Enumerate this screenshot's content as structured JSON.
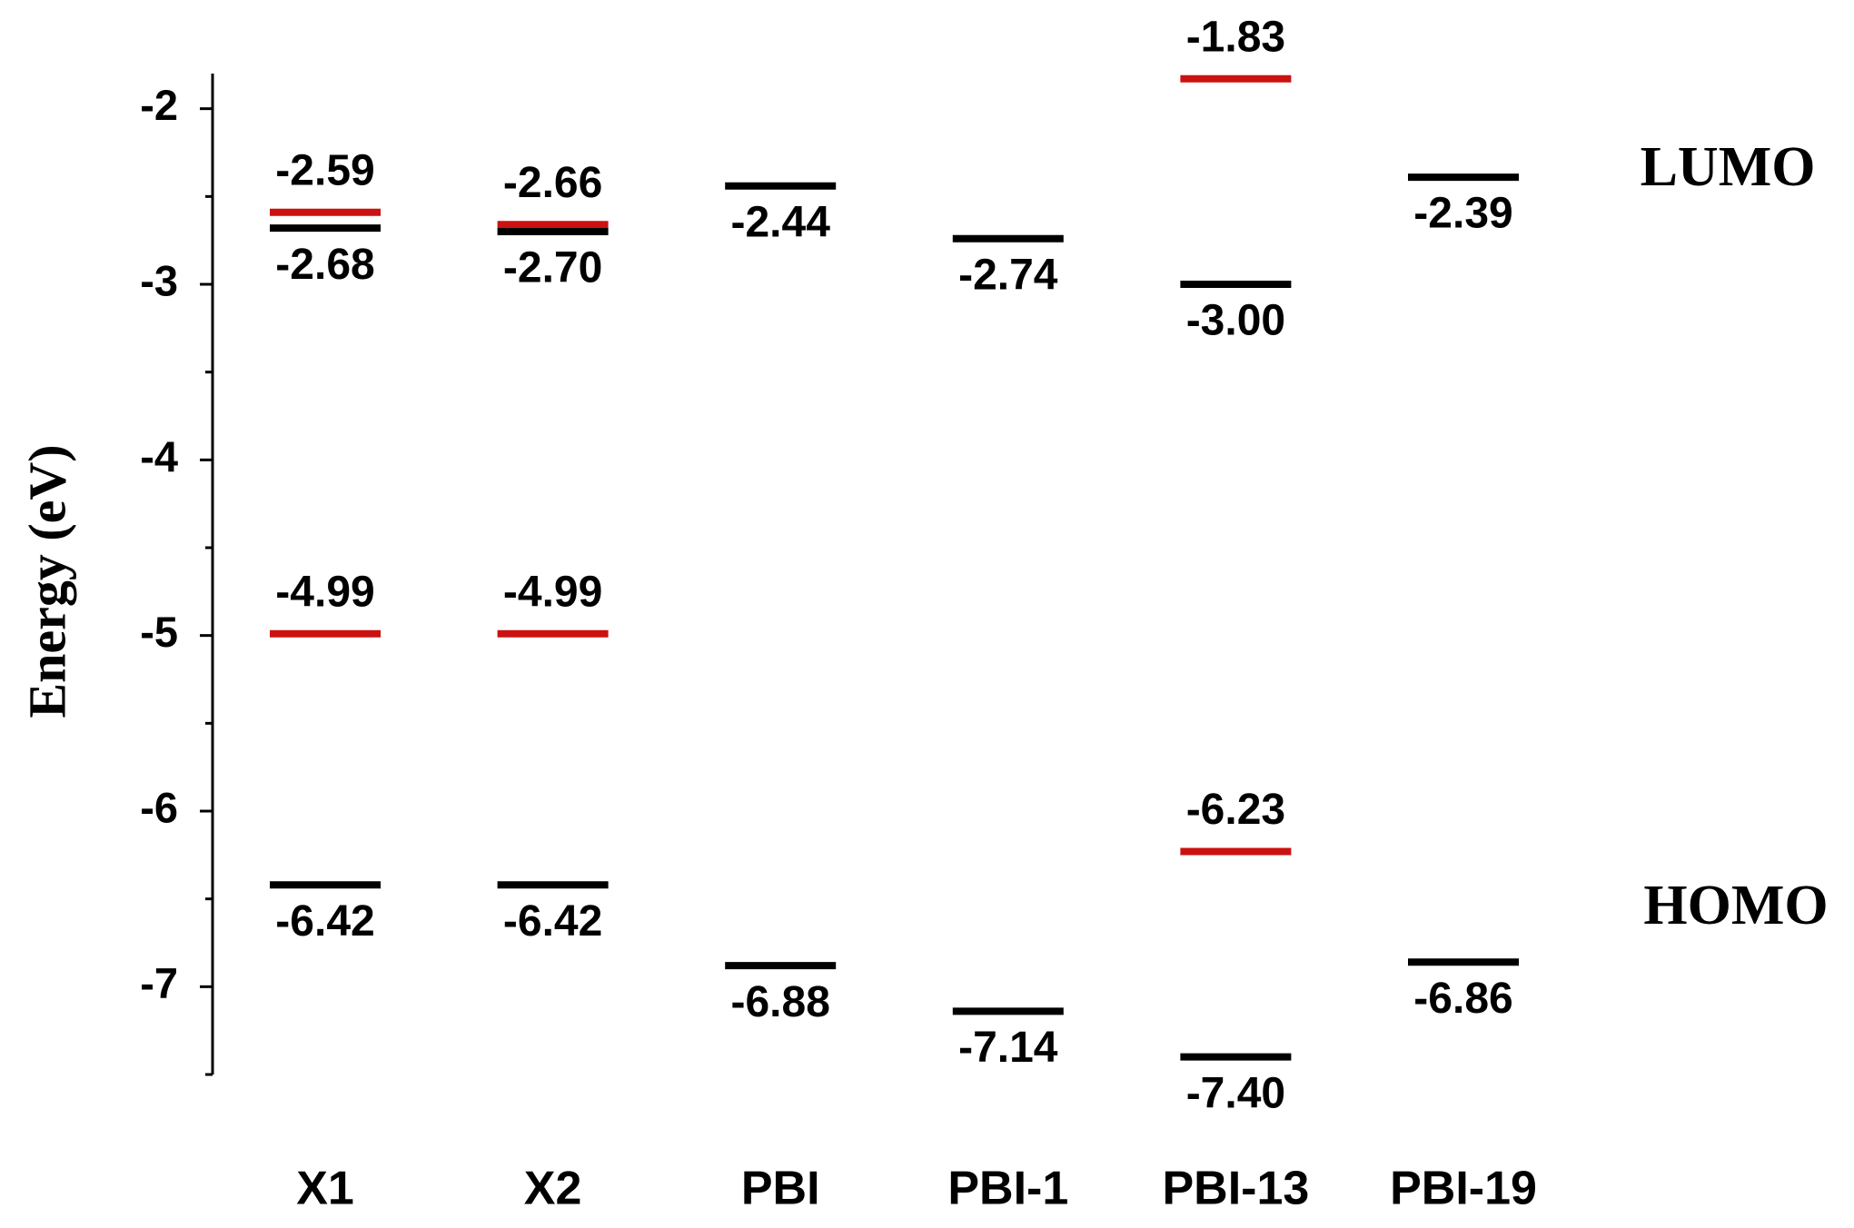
{
  "chart_data": {
    "type": "energy-level",
    "y_label": "Energy (eV)",
    "categories": [
      "X1",
      "X2",
      "PBI",
      "PBI-1",
      "PBI-13",
      "PBI-19"
    ],
    "series": [
      {
        "color": "#cc1111",
        "values": [
          -2.59,
          -2.66,
          null,
          null,
          -1.83,
          null
        ],
        "value_labels": [
          "-2.59",
          "-2.66",
          null,
          null,
          "-1.83",
          null
        ]
      },
      {
        "color": "#cc1111",
        "values": [
          -4.99,
          -4.99,
          null,
          null,
          -6.23,
          null
        ],
        "value_labels": [
          "-4.99",
          "-4.99",
          null,
          null,
          "-6.23",
          null
        ]
      },
      {
        "color": "#000000",
        "values": [
          -2.68,
          -2.7,
          -2.44,
          -2.74,
          -3.0,
          -2.39
        ],
        "value_labels": [
          "-2.68",
          "-2.70",
          "-2.44",
          "-2.74",
          "-3.00",
          "-2.39"
        ]
      },
      {
        "color": "#000000",
        "values": [
          -6.42,
          -6.42,
          -6.88,
          -7.14,
          -7.4,
          -6.86
        ],
        "value_labels": [
          "-6.42",
          "-6.42",
          "-6.88",
          "-7.14",
          "-7.40",
          "-6.86"
        ]
      }
    ],
    "ylim": [
      -7.5,
      -1.8
    ],
    "yticks": [
      -2,
      -3,
      -4,
      -5,
      -6,
      -7
    ],
    "yminorticks": [
      -2.5,
      -3.5,
      -4.5,
      -5.5,
      -6.5,
      -7.5
    ],
    "annotations": [
      "LUMO",
      "HOMO"
    ]
  }
}
